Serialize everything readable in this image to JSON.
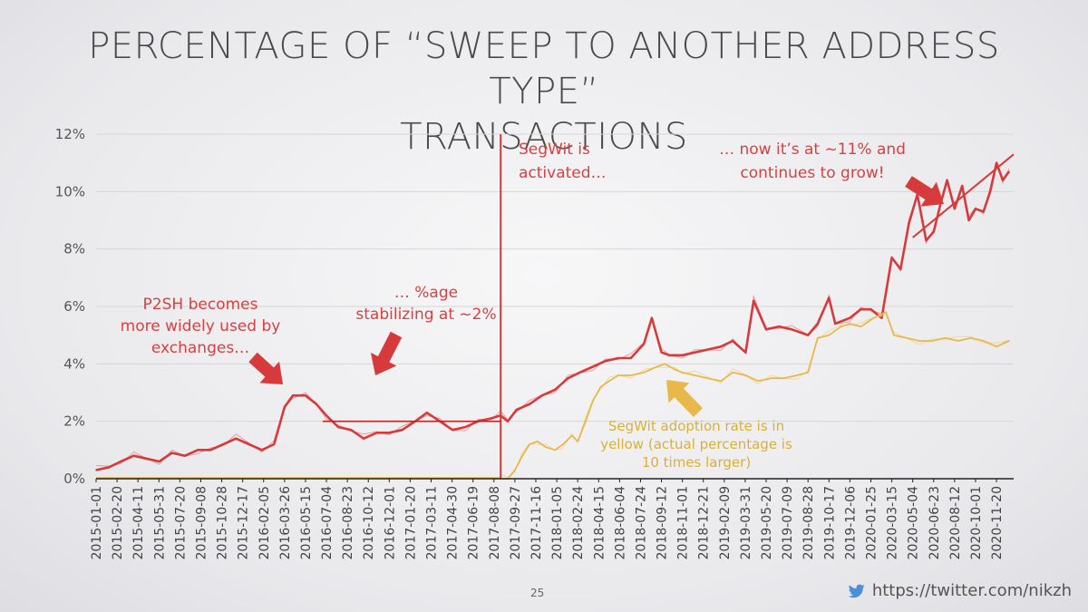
{
  "slide": {
    "title_line1": "PERCENTAGE OF “SWEEP TO ANOTHER ADDRESS TYPE”",
    "title_line2": "TRANSACTIONS",
    "page_number": "25",
    "credit": "https://twitter.com/nikzh",
    "credit_icon": "twitter-bird-icon"
  },
  "colors": {
    "red": "#d63a3a",
    "red_light": "#e58a8a",
    "yellow": "#e8b94a",
    "yellow_light": "#f1d489",
    "grid": "#d6d6d8",
    "axis": "#222222"
  },
  "chart_data": {
    "type": "line",
    "title": "PERCENTAGE OF “SWEEP TO ANOTHER ADDRESS TYPE” TRANSACTIONS",
    "xlabel": "",
    "ylabel": "",
    "ylim": [
      0,
      12
    ],
    "yticks": [
      "0%",
      "2%",
      "4%",
      "6%",
      "8%",
      "10%",
      "12%"
    ],
    "x_start": "2015-01-01",
    "x_end": "2020-12-31",
    "xticks": [
      "2015-01-01",
      "2015-02-20",
      "2015-04-11",
      "2015-05-31",
      "2015-07-20",
      "2015-09-08",
      "2015-10-28",
      "2015-12-17",
      "2016-02-05",
      "2016-03-26",
      "2016-05-15",
      "2016-07-04",
      "2016-08-23",
      "2016-10-12",
      "2016-12-01",
      "2017-01-20",
      "2017-03-11",
      "2017-04-30",
      "2017-06-19",
      "2017-08-08",
      "2017-09-27",
      "2017-11-16",
      "2018-01-05",
      "2018-02-24",
      "2018-04-15",
      "2018-06-04",
      "2018-07-24",
      "2018-09-12",
      "2018-11-01",
      "2018-12-21",
      "2019-02-09",
      "2019-03-31",
      "2019-05-20",
      "2019-07-09",
      "2019-08-28",
      "2019-10-17",
      "2019-12-06",
      "2020-01-25",
      "2020-03-15",
      "2020-05-04",
      "2020-06-23",
      "2020-08-12",
      "2020-10-01",
      "2020-11-20"
    ],
    "series": [
      {
        "name": "Sweep to another address type (%)",
        "color": "#d63a3a",
        "dates": [
          "2015-01-01",
          "2015-02-01",
          "2015-03-01",
          "2015-04-01",
          "2015-05-01",
          "2015-06-01",
          "2015-07-01",
          "2015-08-01",
          "2015-09-01",
          "2015-10-01",
          "2015-11-01",
          "2015-12-01",
          "2016-01-01",
          "2016-02-01",
          "2016-03-01",
          "2016-03-26",
          "2016-04-15",
          "2016-05-15",
          "2016-06-10",
          "2016-07-04",
          "2016-08-01",
          "2016-09-01",
          "2016-10-01",
          "2016-11-01",
          "2016-12-01",
          "2017-01-01",
          "2017-02-01",
          "2017-03-01",
          "2017-04-01",
          "2017-05-01",
          "2017-06-01",
          "2017-07-01",
          "2017-08-01",
          "2017-08-24",
          "2017-09-10",
          "2017-10-01",
          "2017-11-01",
          "2017-12-01",
          "2018-01-01",
          "2018-02-01",
          "2018-03-01",
          "2018-04-01",
          "2018-05-01",
          "2018-06-01",
          "2018-07-01",
          "2018-08-01",
          "2018-08-20",
          "2018-09-12",
          "2018-10-01",
          "2018-11-01",
          "2018-12-01",
          "2019-01-01",
          "2019-02-01",
          "2019-03-01",
          "2019-04-01",
          "2019-04-20",
          "2019-05-20",
          "2019-06-20",
          "2019-07-20",
          "2019-08-28",
          "2019-09-20",
          "2019-10-17",
          "2019-11-01",
          "2019-12-06",
          "2020-01-01",
          "2020-01-25",
          "2020-02-20",
          "2020-03-15",
          "2020-04-05",
          "2020-04-25",
          "2020-05-15",
          "2020-06-05",
          "2020-06-23",
          "2020-07-10",
          "2020-07-25",
          "2020-08-12",
          "2020-08-30",
          "2020-09-15",
          "2020-10-01",
          "2020-10-20",
          "2020-11-05",
          "2020-11-20",
          "2020-12-05",
          "2020-12-20"
        ],
        "values": [
          0.3,
          0.4,
          0.6,
          0.8,
          0.7,
          0.6,
          0.9,
          0.8,
          1.0,
          1.0,
          1.2,
          1.4,
          1.2,
          1.0,
          1.2,
          2.5,
          2.9,
          2.9,
          2.6,
          2.2,
          1.8,
          1.7,
          1.4,
          1.6,
          1.6,
          1.7,
          2.0,
          2.3,
          2.0,
          1.7,
          1.8,
          2.0,
          2.1,
          2.2,
          2.0,
          2.4,
          2.6,
          2.9,
          3.1,
          3.5,
          3.7,
          3.9,
          4.1,
          4.2,
          4.2,
          4.7,
          5.6,
          4.4,
          4.3,
          4.3,
          4.4,
          4.5,
          4.6,
          4.8,
          4.4,
          6.2,
          5.2,
          5.3,
          5.2,
          5.0,
          5.4,
          6.3,
          5.4,
          5.6,
          5.9,
          5.9,
          5.6,
          7.7,
          7.3,
          8.9,
          9.9,
          8.3,
          8.6,
          9.6,
          10.4,
          9.4,
          10.2,
          9.0,
          9.4,
          9.3,
          10.0,
          11.0,
          10.4,
          10.7
        ]
      },
      {
        "name": "SegWit adoption rate",
        "color": "#e8b94a",
        "dates": [
          "2017-08-24",
          "2017-09-10",
          "2017-09-27",
          "2017-10-15",
          "2017-11-01",
          "2017-11-20",
          "2017-12-10",
          "2018-01-01",
          "2018-01-20",
          "2018-02-10",
          "2018-02-24",
          "2018-03-15",
          "2018-04-01",
          "2018-04-20",
          "2018-05-10",
          "2018-06-01",
          "2018-07-01",
          "2018-08-01",
          "2018-09-01",
          "2018-09-20",
          "2018-10-15",
          "2018-11-01",
          "2018-12-01",
          "2019-01-01",
          "2019-02-01",
          "2019-03-01",
          "2019-04-01",
          "2019-05-01",
          "2019-06-01",
          "2019-07-01",
          "2019-08-01",
          "2019-08-28",
          "2019-09-20",
          "2019-10-17",
          "2019-11-15",
          "2019-12-06",
          "2020-01-01",
          "2020-02-01",
          "2020-03-01",
          "2020-03-20",
          "2020-04-20",
          "2020-05-20",
          "2020-06-20",
          "2020-07-20",
          "2020-08-20",
          "2020-09-20",
          "2020-10-20",
          "2020-11-20",
          "2020-12-20"
        ],
        "values": [
          0.0,
          0.0,
          0.3,
          0.8,
          1.2,
          1.3,
          1.1,
          1.0,
          1.2,
          1.5,
          1.3,
          2.0,
          2.7,
          3.2,
          3.4,
          3.6,
          3.6,
          3.7,
          3.9,
          4.0,
          3.8,
          3.7,
          3.6,
          3.5,
          3.4,
          3.7,
          3.6,
          3.4,
          3.5,
          3.5,
          3.6,
          3.7,
          4.9,
          5.0,
          5.3,
          5.4,
          5.3,
          5.6,
          5.8,
          5.0,
          4.9,
          4.8,
          4.8,
          4.9,
          4.8,
          4.9,
          4.8,
          4.6,
          4.8
        ]
      }
    ],
    "annotations": [
      {
        "text_lines": [
          "P2SH becomes",
          "more widely used by",
          "exchanges…"
        ],
        "color": "red"
      },
      {
        "text_lines": [
          "… %age",
          "stabilizing at ~2%"
        ],
        "color": "red"
      },
      {
        "text_lines": [
          "SegWit is",
          "activated…"
        ],
        "color": "red"
      },
      {
        "text_lines": [
          "… now it’s at ~11% and",
          "continues to grow!"
        ],
        "color": "red"
      },
      {
        "text_lines": [
          "SegWit adoption rate is in",
          "yellow (actual percentage is",
          "10 times larger)"
        ],
        "color": "yellow"
      }
    ],
    "reference_lines": [
      {
        "type": "vertical",
        "date": "2017-08-24",
        "label": "SegWit activation"
      },
      {
        "type": "horizontal",
        "value": 2.0,
        "from": "2016-06-25",
        "to": "2017-08-24",
        "label": "~2% level"
      },
      {
        "type": "trend",
        "from": {
          "date": "2020-05-04",
          "value": 8.4
        },
        "to": {
          "date": "2020-12-31",
          "value": 11.3
        }
      }
    ]
  }
}
